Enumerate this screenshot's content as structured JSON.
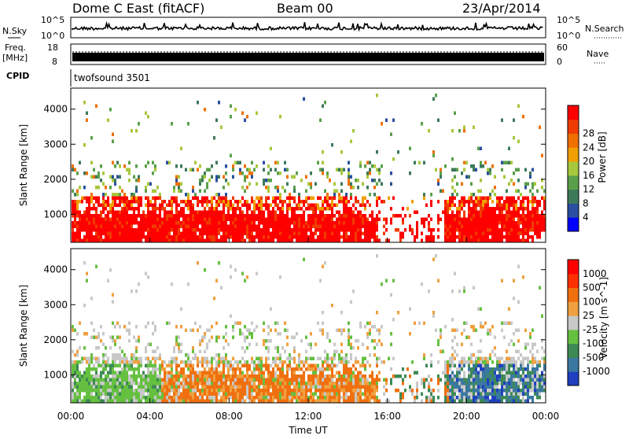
{
  "header": {
    "title": "Dome C East (fitACF)",
    "beam": "Beam 00",
    "date": "23/Apr/2014"
  },
  "nsky": {
    "label": "N.Sky",
    "left_ticks": [
      "10^5",
      "10^0"
    ],
    "right_label": "N.Search",
    "right_ticks": [
      "10^5",
      "10^0"
    ]
  },
  "freq": {
    "label_top": "Freq.",
    "label_bottom": "[MHz]",
    "left_ticks": [
      "18",
      "8"
    ],
    "right_label": "Nave",
    "right_ticks": [
      "60",
      "0"
    ]
  },
  "cpid": {
    "label": "CPID",
    "text": "twofsound 3501"
  },
  "chart_data": [
    {
      "type": "heatmap",
      "name": "power",
      "ylabel": "Slant Range [km]",
      "xlabel": "",
      "ylim": [
        200,
        4600
      ],
      "xlim": [
        0,
        24
      ],
      "yticks": [
        "1000",
        "2000",
        "3000",
        "4000"
      ],
      "colorbar": {
        "label": "Power [dB]",
        "range": [
          0,
          32
        ],
        "ticks": [
          "4",
          "8",
          "12",
          "16",
          "20",
          "24",
          "28"
        ],
        "colors": [
          "#0000ff",
          "#2a4fa0",
          "#3d7a5a",
          "#5aa04a",
          "#a7c83c",
          "#f0a000",
          "#f07000",
          "#f03c00",
          "#ff0000"
        ]
      }
    },
    {
      "type": "heatmap",
      "name": "velocity",
      "ylabel": "Slant Range [km]",
      "xlabel": "Time UT",
      "ylim": [
        200,
        4600
      ],
      "xlim": [
        0,
        24
      ],
      "xticks": [
        "00:00",
        "04:00",
        "08:00",
        "12:00",
        "16:00",
        "20:00",
        "00:00"
      ],
      "yticks": [
        "1000",
        "2000",
        "3000",
        "4000"
      ],
      "colorbar": {
        "label": "Velocity [m s^-1]",
        "range": [
          -1500,
          1500
        ],
        "ticks": [
          "1000",
          "500",
          "100",
          "25",
          "-25",
          "-100",
          "-500",
          "-1000"
        ],
        "colors": [
          "#2040c0",
          "#3a78a0",
          "#3d8a55",
          "#66c040",
          "#c8c8c8",
          "#f0a040",
          "#f07010",
          "#ff3000",
          "#ff0000"
        ]
      }
    }
  ]
}
